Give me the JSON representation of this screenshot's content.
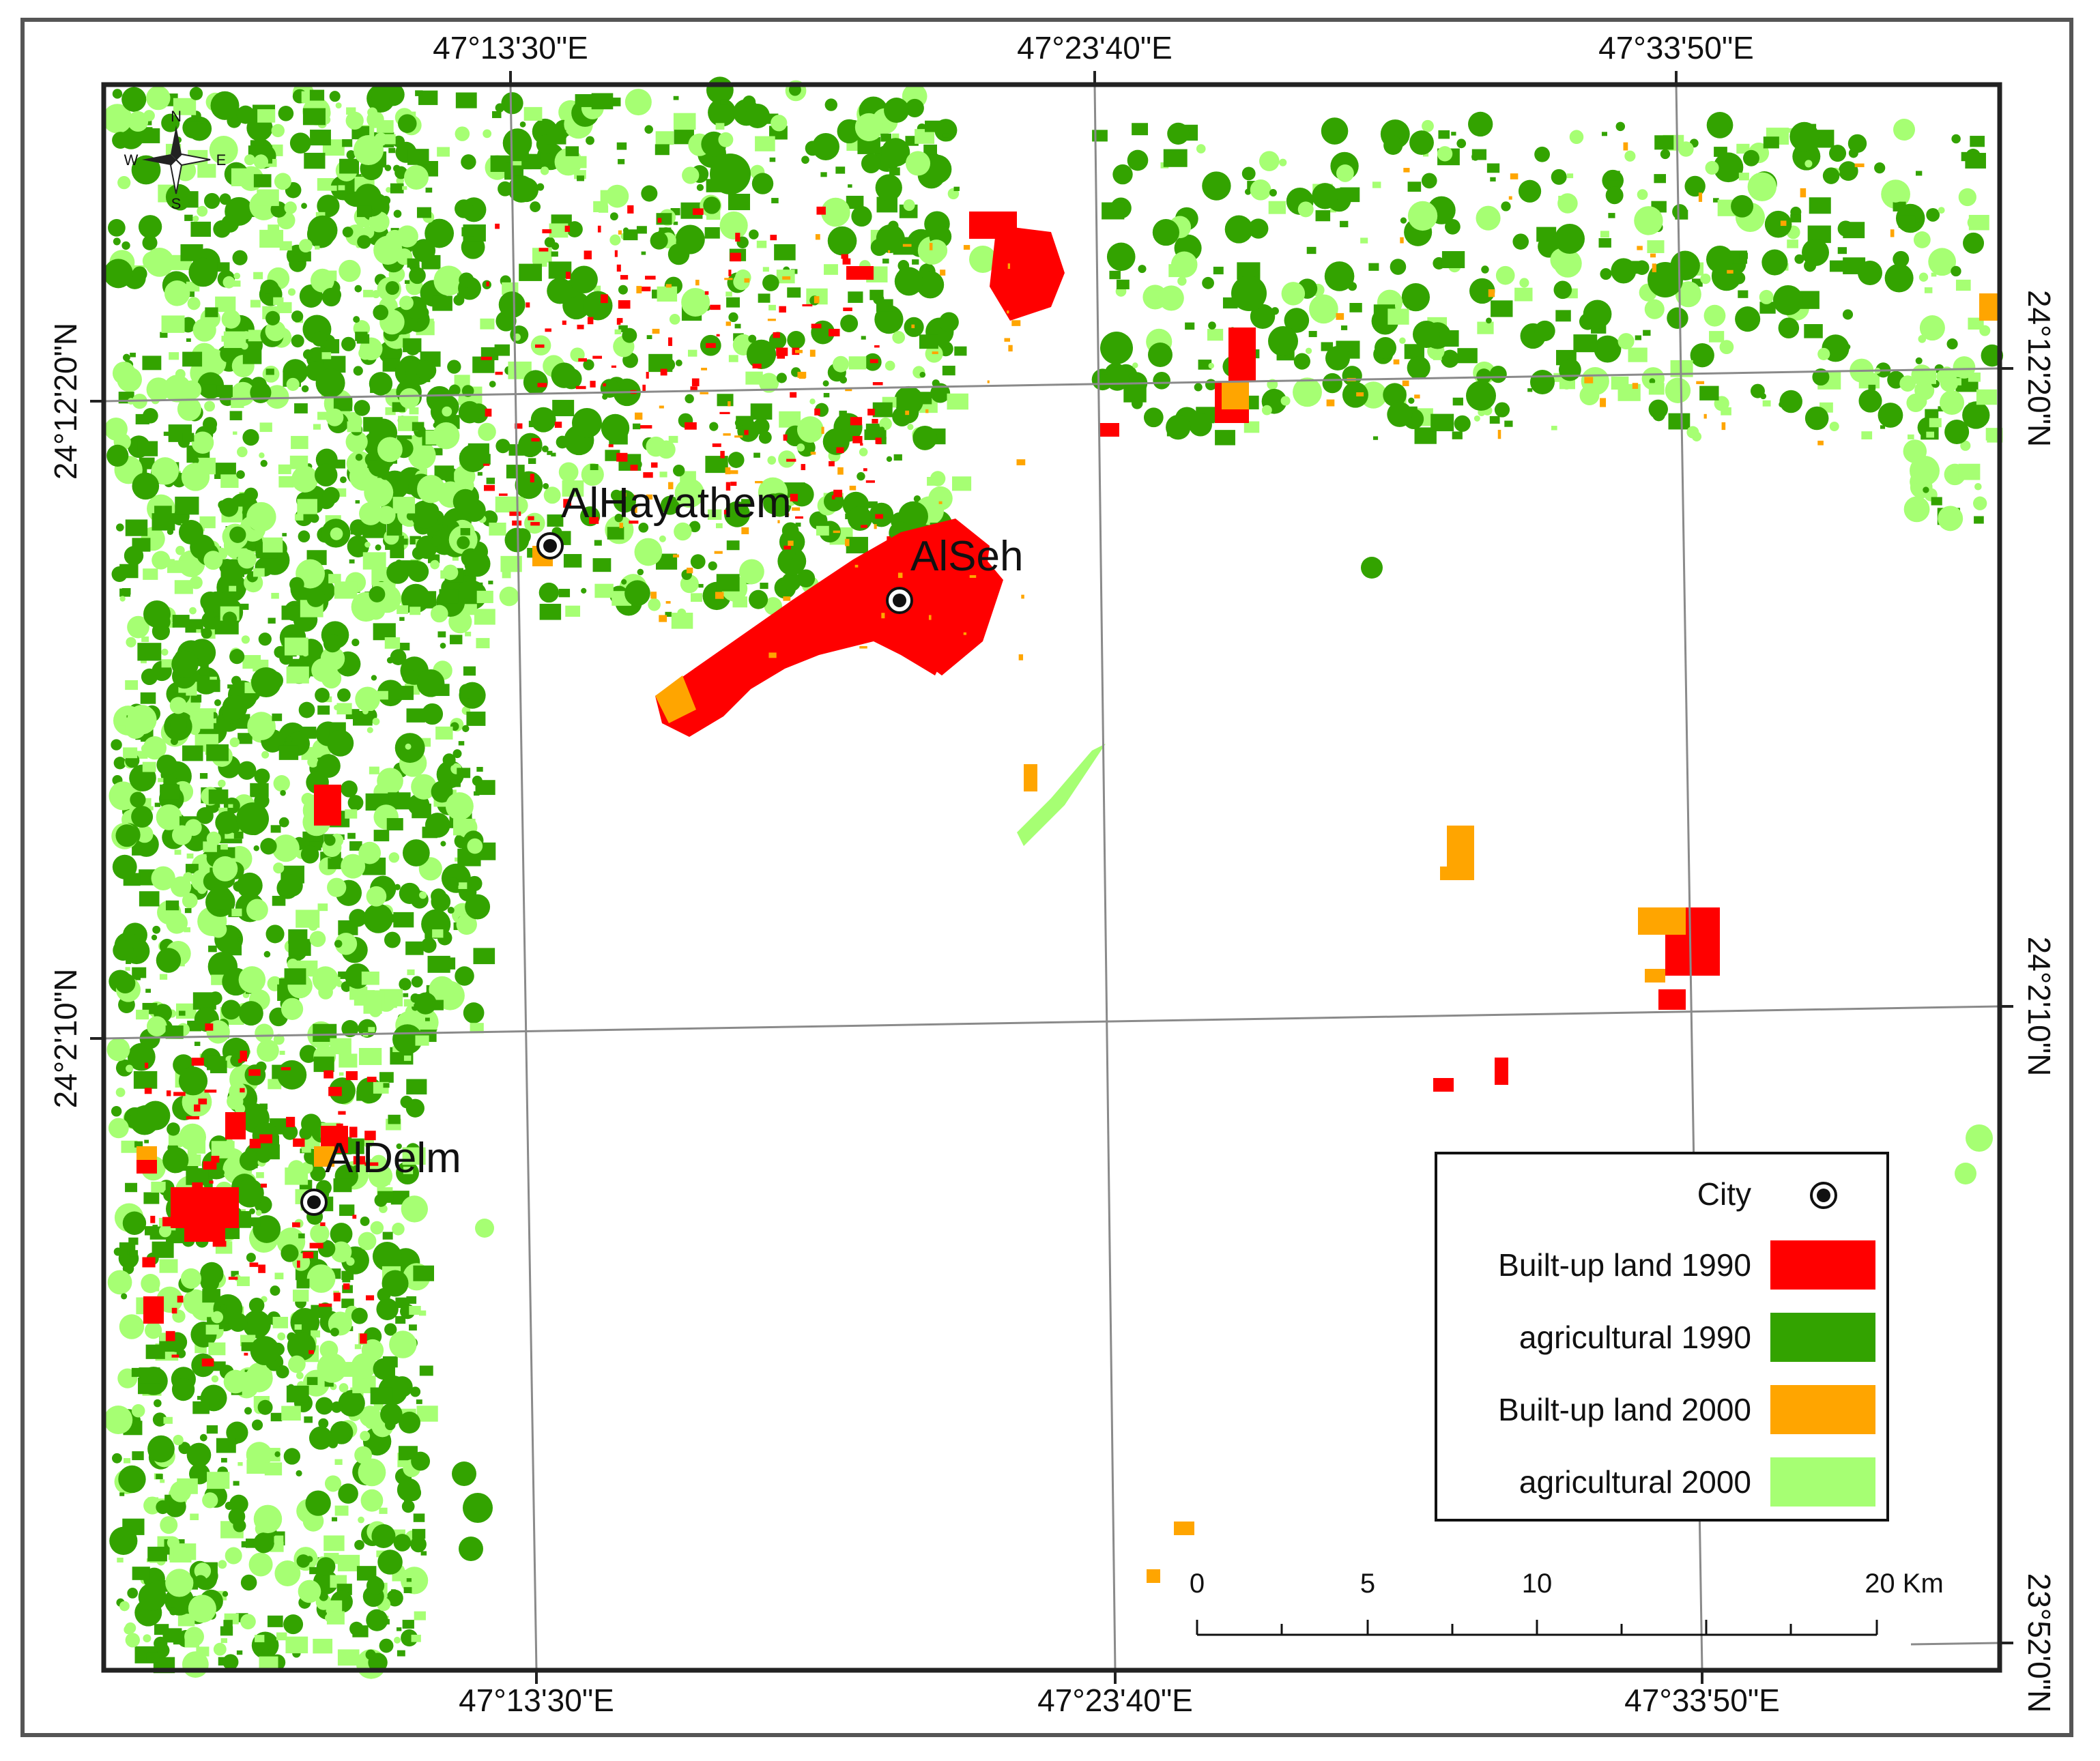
{
  "map": {
    "top_axis_labels": [
      "47°13'30\"E",
      "47°23'40\"E",
      "47°33'50\"E"
    ],
    "bottom_axis_labels": [
      "47°13'30\"E",
      "47°23'40\"E",
      "47°33'50\"E"
    ],
    "left_axis_labels": [
      "24°12'20\"N",
      "24°2'10\"N"
    ],
    "right_axis_labels": [
      "24°12'20\"N",
      "24°2'10\"N",
      "23°52'0\"N"
    ],
    "cities": [
      "AlHayathem",
      "AlSeh",
      "AlDelm"
    ],
    "north_arrow": {
      "n": "N",
      "s": "S",
      "e": "E",
      "w": "W"
    }
  },
  "legend": {
    "city_label": "City",
    "items": [
      {
        "label": "Built-up land 1990",
        "color": "#ff0000"
      },
      {
        "label": "agricultural 1990",
        "color": "#33a300"
      },
      {
        "label": "Built-up land 2000",
        "color": "#ffa500"
      },
      {
        "label": "agricultural 2000",
        "color": "#a6ff73"
      }
    ]
  },
  "scale_bar": {
    "labels": [
      "0",
      "5",
      "10",
      "20 Km"
    ]
  },
  "colors": {
    "builtup_1990": "#ff0000",
    "agri_1990": "#33a300",
    "builtup_2000": "#ffa500",
    "agri_2000": "#a6ff73",
    "grid": "#888888",
    "frame": "#222222"
  }
}
